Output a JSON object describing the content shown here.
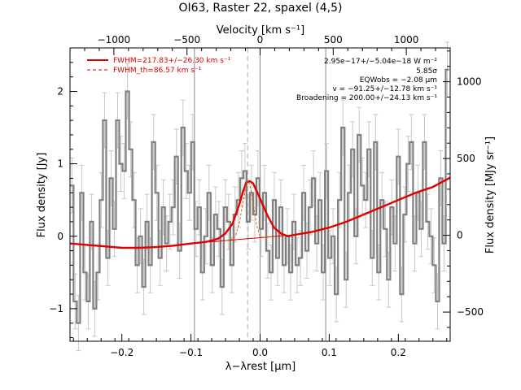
{
  "chart_data": {
    "type": "line",
    "title": "OI63, Raster 22, spaxel (4,5)",
    "xlabel": "λ−λrest [μm]",
    "ylabel": "Flux density [Jy]",
    "x2label": "Velocity [km s⁻¹]",
    "y2label": "Flux density [MJy sr⁻¹]",
    "xlim": [
      -0.275,
      0.275
    ],
    "ylim": [
      -1.45,
      2.6
    ],
    "x_ticks": [
      -0.2,
      -0.1,
      0.0,
      0.1,
      0.2
    ],
    "x_tick_labels": [
      "−0.2",
      "−0.1",
      "0.0",
      "0.1",
      "0.2"
    ],
    "y_ticks": [
      -1,
      0,
      1,
      2
    ],
    "y_tick_labels": [
      "−1",
      "0",
      "1",
      "2"
    ],
    "x2lim": [
      -1300,
      1300
    ],
    "x2_ticks": [
      -1000,
      -500,
      0,
      500,
      1000
    ],
    "x2_tick_labels": [
      "−1000",
      "−500",
      "0",
      "500",
      "1000"
    ],
    "y2lim": [
      -690,
      1220
    ],
    "y2_ticks": [
      -500,
      0,
      500,
      1000
    ],
    "y2_tick_labels": [
      "−500",
      "0",
      "500",
      "1000"
    ],
    "grid": false,
    "legend": {
      "placement": "top-left",
      "entries": [
        {
          "label": "FWHM=217.83+/−26.30 km s⁻¹",
          "style": "solid",
          "color": "#e00000"
        },
        {
          "label": "FWHM_th=86.57 km s⁻¹",
          "style": "dashed",
          "color": "#e00000"
        }
      ]
    },
    "annotations": [
      "2.95e−17+/−5.04e−18 W m⁻²",
      "5.85σ",
      "EQWobs = −2.08 μm",
      "v = −91.25+/−12.78 km s⁻¹",
      "Broadening = 200.00+/−24.13 km s⁻¹"
    ],
    "vertical_lines": [
      {
        "x": -0.095,
        "style": "solid",
        "color": "#888888"
      },
      {
        "x": -0.018,
        "style": "dashed",
        "color": "#aaaaaa"
      },
      {
        "x": 0.0,
        "style": "solid",
        "color": "#888888"
      },
      {
        "x": 0.095,
        "style": "solid",
        "color": "#888888"
      }
    ],
    "series": [
      {
        "name": "",
        "kind": "step",
        "color": "#808080",
        "x": [
          -0.2722,
          -0.2675,
          -0.2628,
          -0.258,
          -0.2533,
          -0.2486,
          -0.2439,
          -0.2392,
          -0.2344,
          -0.2297,
          -0.225,
          -0.2203,
          -0.2155,
          -0.2108,
          -0.2061,
          -0.2014,
          -0.1966,
          -0.1919,
          -0.1872,
          -0.1825,
          -0.1778,
          -0.173,
          -0.1683,
          -0.1636,
          -0.1589,
          -0.1541,
          -0.1494,
          -0.1447,
          -0.14,
          -0.1353,
          -0.1305,
          -0.1258,
          -0.1211,
          -0.1164,
          -0.1116,
          -0.1069,
          -0.1022,
          -0.0975,
          -0.0928,
          -0.088,
          -0.0833,
          -0.0786,
          -0.0739,
          -0.0691,
          -0.0644,
          -0.0597,
          -0.055,
          -0.0502,
          -0.0455,
          -0.0408,
          -0.0361,
          -0.0314,
          -0.0266,
          -0.0219,
          -0.0172,
          -0.0125,
          -0.0077,
          -0.003,
          0.0017,
          0.0064,
          0.0111,
          0.0159,
          0.0206,
          0.0253,
          0.03,
          0.0348,
          0.0395,
          0.0442,
          0.0489,
          0.0536,
          0.0584,
          0.0631,
          0.0678,
          0.0725,
          0.0773,
          0.082,
          0.0867,
          0.0914,
          0.0961,
          0.1009,
          0.1056,
          0.1103,
          0.115,
          0.1198,
          0.1245,
          0.1292,
          0.1339,
          0.1387,
          0.1434,
          0.1481,
          0.1528,
          0.1575,
          0.1623,
          0.167,
          0.1717,
          0.1764,
          0.1812,
          0.1859,
          0.1906,
          0.1953,
          0.2,
          0.2048,
          0.2095,
          0.2142,
          0.2189,
          0.2237,
          0.2284,
          0.2331,
          0.2378,
          0.2425,
          0.2473,
          0.252,
          0.2567,
          0.2614,
          0.2661,
          0.2709
        ],
        "y": [
          0.7,
          -0.9,
          -1.2,
          0.6,
          -0.5,
          -0.9,
          0.2,
          -1.0,
          -0.5,
          0.5,
          1.6,
          -0.3,
          0.8,
          0.1,
          1.6,
          1.0,
          0.9,
          2.0,
          1.2,
          0.5,
          -0.4,
          0.0,
          -0.7,
          0.2,
          -0.4,
          1.3,
          0.6,
          -0.3,
          0.4,
          -0.1,
          0.2,
          0.4,
          1.1,
          -0.2,
          1.5,
          0.9,
          0.6,
          1.3,
          0.1,
          0.4,
          -0.5,
          0.0,
          0.6,
          -0.4,
          0.3,
          0.1,
          -0.7,
          0.4,
          0.2,
          -0.4,
          0.3,
          0.5,
          0.8,
          0.9,
          0.2,
          0.6,
          0.3,
          0.8,
          0.1,
          0.6,
          -0.2,
          -0.5,
          0.5,
          -0.3,
          0.4,
          -0.4,
          0.0,
          -0.5,
          0.2,
          -0.4,
          -0.3,
          0.6,
          -0.2,
          0.4,
          0.8,
          -0.1,
          0.5,
          -0.5,
          0.9,
          -0.3,
          0.0,
          -0.8,
          0.5,
          1.5,
          -0.6,
          0.6,
          1.2,
          0.0,
          1.4,
          0.7,
          0.5,
          1.2,
          -0.3,
          1.3,
          -0.5,
          0.5,
          0.1,
          -0.6,
          0.4,
          -0.1,
          1.1,
          -0.8,
          0.3,
          1.0,
          1.3,
          -0.1,
          0.6,
          0.1,
          1.3,
          0.2,
          0.0,
          -0.4,
          -0.9,
          0.8,
          -0.1,
          2.3
        ],
        "errors": [
          0.38,
          0.38,
          0.38,
          0.38,
          0.38,
          0.38,
          0.38,
          0.38,
          0.38,
          0.38,
          0.38,
          0.38,
          0.38,
          0.38,
          0.38,
          0.38,
          0.38,
          0.38,
          0.38,
          0.38,
          0.38,
          0.38,
          0.38,
          0.38,
          0.38,
          0.38,
          0.38,
          0.38,
          0.38,
          0.38,
          0.38,
          0.38,
          0.38,
          0.38,
          0.38,
          0.38,
          0.38,
          0.38,
          0.38,
          0.38,
          0.38,
          0.38,
          0.38,
          0.38,
          0.38,
          0.38,
          0.38,
          0.38,
          0.38,
          0.38,
          0.38,
          0.38,
          0.38,
          0.38,
          0.38,
          0.38,
          0.38,
          0.38,
          0.38,
          0.38,
          0.38,
          0.38,
          0.38,
          0.38,
          0.38,
          0.38,
          0.38,
          0.38,
          0.38,
          0.38,
          0.38,
          0.38,
          0.38,
          0.38,
          0.38,
          0.38,
          0.38,
          0.38,
          0.38,
          0.38,
          0.38,
          0.38,
          0.38,
          0.38,
          0.38,
          0.38,
          0.38,
          0.38,
          0.38,
          0.38,
          0.38,
          0.38,
          0.38,
          0.38,
          0.38,
          0.38,
          0.38,
          0.38,
          0.38,
          0.38,
          0.38,
          0.38,
          0.38,
          0.38,
          0.38,
          0.38,
          0.38,
          0.38,
          0.38,
          0.38,
          0.38,
          0.38,
          0.38,
          0.38,
          0.38,
          0.38
        ]
      },
      {
        "name": "FWHM=217.83+/−26.30 km s⁻¹",
        "kind": "fit",
        "color": "#e00000",
        "style": "solid",
        "x": [
          -0.275,
          -0.25,
          -0.225,
          -0.2,
          -0.175,
          -0.15,
          -0.125,
          -0.1,
          -0.09,
          -0.08,
          -0.07,
          -0.06,
          -0.05,
          -0.04,
          -0.03,
          -0.025,
          -0.02,
          -0.015,
          -0.01,
          0.0,
          0.01,
          0.02,
          0.03,
          0.04,
          0.05,
          0.075,
          0.1,
          0.125,
          0.15,
          0.175,
          0.2,
          0.225,
          0.25,
          0.275
        ],
        "y": [
          -0.1,
          -0.12,
          -0.14,
          -0.16,
          -0.16,
          -0.15,
          -0.13,
          -0.1,
          -0.09,
          -0.08,
          -0.06,
          -0.03,
          0.04,
          0.17,
          0.44,
          0.61,
          0.74,
          0.76,
          0.73,
          0.52,
          0.3,
          0.12,
          0.04,
          0.0,
          0.02,
          0.06,
          0.12,
          0.2,
          0.3,
          0.4,
          0.5,
          0.6,
          0.68,
          0.81
        ]
      },
      {
        "name": "",
        "kind": "baseline",
        "color": "#e00000",
        "style": "solid-thin",
        "x": [
          -0.275,
          -0.25,
          -0.225,
          -0.2,
          -0.175,
          -0.15,
          -0.125,
          -0.1,
          -0.075,
          -0.05,
          -0.025,
          0.0,
          0.025,
          0.05,
          0.075,
          0.1,
          0.125,
          0.15,
          0.175,
          0.2,
          0.225,
          0.25,
          0.275
        ],
        "y": [
          -0.1,
          -0.12,
          -0.14,
          -0.16,
          -0.16,
          -0.15,
          -0.13,
          -0.1,
          -0.08,
          -0.06,
          -0.04,
          -0.02,
          0.0,
          0.02,
          0.06,
          0.12,
          0.2,
          0.3,
          0.4,
          0.5,
          0.6,
          0.68,
          0.81
        ]
      },
      {
        "name": "FWHM_th=86.57 km s⁻¹",
        "kind": "thermal",
        "color": "#e06000",
        "style": "dashed",
        "x": [
          -0.05,
          -0.04,
          -0.035,
          -0.03,
          -0.025,
          -0.02,
          -0.018,
          -0.015,
          -0.01,
          -0.005,
          0.0,
          0.005,
          0.01,
          0.015,
          0.02
        ],
        "y": [
          -0.06,
          -0.04,
          0.02,
          0.18,
          0.46,
          0.72,
          0.76,
          0.72,
          0.45,
          0.15,
          0.0,
          -0.02,
          -0.01,
          -0.01,
          0.0
        ]
      }
    ]
  }
}
